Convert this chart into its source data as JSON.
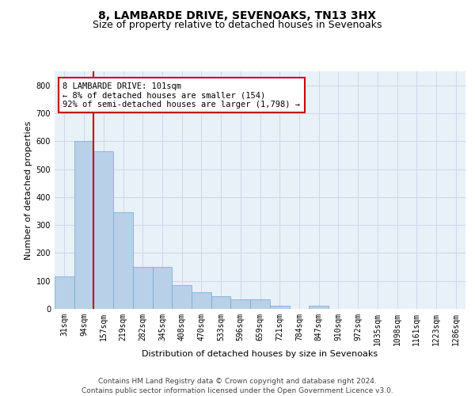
{
  "title1": "8, LAMBARDE DRIVE, SEVENOAKS, TN13 3HX",
  "title2": "Size of property relative to detached houses in Sevenoaks",
  "xlabel": "Distribution of detached houses by size in Sevenoaks",
  "ylabel": "Number of detached properties",
  "bar_labels": [
    "31sqm",
    "94sqm",
    "157sqm",
    "219sqm",
    "282sqm",
    "345sqm",
    "408sqm",
    "470sqm",
    "533sqm",
    "596sqm",
    "659sqm",
    "721sqm",
    "784sqm",
    "847sqm",
    "910sqm",
    "972sqm",
    "1035sqm",
    "1098sqm",
    "1161sqm",
    "1223sqm",
    "1286sqm"
  ],
  "bar_values": [
    115,
    600,
    565,
    345,
    150,
    150,
    85,
    60,
    45,
    35,
    35,
    10,
    0,
    10,
    0,
    0,
    0,
    0,
    0,
    0,
    0
  ],
  "bar_color": "#b8d0e8",
  "bar_edge_color": "#6aaad4",
  "grid_color": "#ccd9e8",
  "background_color": "#e8f0f8",
  "vline_color": "#cc0000",
  "vline_x": 1.5,
  "annotation_text": "8 LAMBARDE DRIVE: 101sqm\n← 8% of detached houses are smaller (154)\n92% of semi-detached houses are larger (1,798) →",
  "annotation_box_color": "#ffffff",
  "annotation_box_edge": "#cc0000",
  "ylim": [
    0,
    850
  ],
  "yticks": [
    0,
    100,
    200,
    300,
    400,
    500,
    600,
    700,
    800
  ],
  "footer_text": "Contains HM Land Registry data © Crown copyright and database right 2024.\nContains public sector information licensed under the Open Government Licence v3.0.",
  "title1_fontsize": 10,
  "title2_fontsize": 9,
  "xlabel_fontsize": 8,
  "ylabel_fontsize": 8,
  "tick_fontsize": 7,
  "annotation_fontsize": 7.5,
  "footer_fontsize": 6.5
}
